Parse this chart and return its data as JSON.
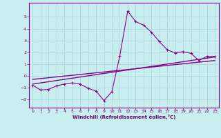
{
  "xlabel": "Windchill (Refroidissement éolien,°C)",
  "bg_color": "#c8eef0",
  "grid_color": "#b0d8da",
  "line_color": "#880088",
  "text_color": "#660066",
  "xlim": [
    -0.5,
    23.5
  ],
  "ylim": [
    -2.7,
    6.2
  ],
  "xticks": [
    0,
    1,
    2,
    3,
    4,
    5,
    6,
    7,
    8,
    9,
    10,
    11,
    12,
    13,
    14,
    15,
    16,
    17,
    18,
    19,
    20,
    21,
    22,
    23
  ],
  "yticks": [
    -2,
    -1,
    0,
    1,
    2,
    3,
    4,
    5
  ],
  "jagged_x": [
    0,
    1,
    2,
    3,
    4,
    5,
    6,
    7,
    8,
    9,
    10,
    11,
    12,
    13,
    14,
    15,
    16,
    17,
    18,
    19,
    20,
    21,
    22,
    23
  ],
  "jagged_y": [
    -0.8,
    -1.2,
    -1.15,
    -0.85,
    -0.7,
    -0.6,
    -0.7,
    -1.05,
    -1.3,
    -2.1,
    -1.35,
    1.7,
    5.5,
    4.6,
    4.3,
    3.7,
    2.9,
    2.2,
    1.95,
    2.05,
    1.9,
    1.3,
    1.65,
    1.65
  ],
  "trend1_x": [
    0,
    23
  ],
  "trend1_y": [
    -0.7,
    1.6
  ],
  "trend2_x": [
    0,
    23
  ],
  "trend2_y": [
    -0.3,
    1.3
  ]
}
